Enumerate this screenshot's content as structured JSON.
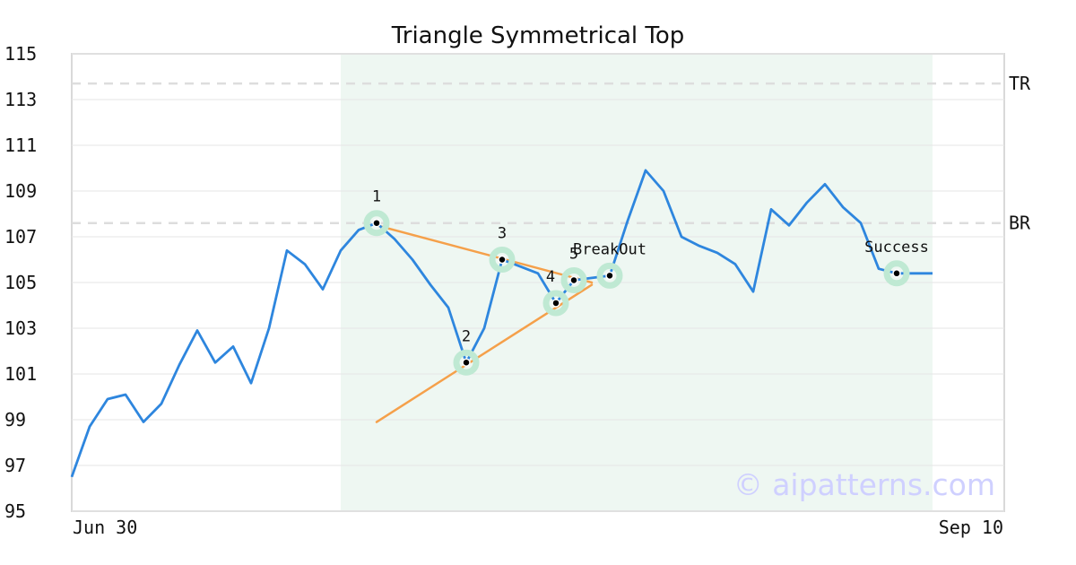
{
  "chart_data": {
    "type": "line",
    "title": "Triangle Symmetrical Top",
    "xlabel": "",
    "ylabel": "",
    "ylim": [
      95,
      115
    ],
    "yticks": [
      95,
      97,
      99,
      101,
      103,
      105,
      107,
      109,
      111,
      113,
      115
    ],
    "x_tick_labels": [
      "Jun 30",
      "Sep 10"
    ],
    "grid": true,
    "watermark": "© aipatterns.com",
    "colors": {
      "price": "#2e86de",
      "trend": "#f5a04a",
      "highlight": "#eef7f2",
      "marker_ring": "#bfe9d3",
      "ref_line": "#dddddd",
      "grid": "#e6e6e6",
      "watermark": "#cfd0ff"
    },
    "series": [
      {
        "values": [
          96.5,
          98.7,
          99.9,
          100.1,
          98.9,
          99.7,
          101.4,
          102.9,
          101.5,
          102.2,
          100.6,
          103.0,
          106.4,
          105.8,
          104.7,
          106.4,
          107.3,
          107.6,
          106.9,
          106.0,
          104.9,
          103.9,
          101.5,
          103.0,
          106.0,
          105.7,
          105.4,
          104.1,
          105.1,
          105.2,
          105.3,
          107.7,
          109.9,
          109.0,
          107.0,
          106.6,
          106.3,
          105.8,
          104.6,
          108.2,
          107.5,
          108.5,
          109.3,
          108.3,
          107.6,
          105.6,
          105.4,
          105.4,
          105.4
        ]
      }
    ],
    "highlight_range": [
      15,
      48
    ],
    "reference_lines": [
      {
        "label": "TR",
        "y": 113.7
      },
      {
        "label": "BR",
        "y": 107.6
      }
    ],
    "trend_lines": [
      {
        "from": [
          17,
          107.5
        ],
        "to": [
          29,
          105.0
        ]
      },
      {
        "from": [
          17,
          98.9
        ],
        "to": [
          29,
          104.9
        ]
      }
    ],
    "annotations": [
      {
        "label": "1",
        "index": 17,
        "y": 107.6,
        "pos": "above"
      },
      {
        "label": "2",
        "index": 22,
        "y": 101.5,
        "pos": "above"
      },
      {
        "label": "3",
        "index": 24,
        "y": 106.0,
        "pos": "above"
      },
      {
        "label": "4",
        "index": 27,
        "y": 104.1,
        "pos": "left"
      },
      {
        "label": "5",
        "index": 28,
        "y": 105.1,
        "pos": "above"
      },
      {
        "label": "BreakOut",
        "index": 30,
        "y": 105.3,
        "pos": "above"
      },
      {
        "label": "Success",
        "index": 46,
        "y": 105.4,
        "pos": "above"
      }
    ]
  }
}
